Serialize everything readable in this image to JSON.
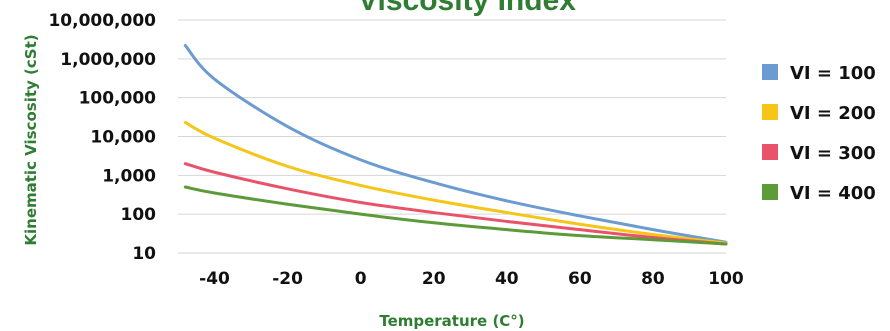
{
  "chart_data": {
    "type": "line",
    "title": "Viscosity Index",
    "xlabel": "Temperature (C°)",
    "ylabel": "Kinematic Viscosity (cSt)",
    "yscale": "log",
    "xlim": [
      -50,
      100
    ],
    "ylim": [
      10,
      10000000
    ],
    "xticks": [
      -40,
      -20,
      0,
      20,
      40,
      60,
      80,
      100
    ],
    "xtick_labels": [
      "-40",
      "-20",
      "0",
      "20",
      "40",
      "60",
      "80",
      "100"
    ],
    "yticks": [
      10,
      100,
      1000,
      10000,
      100000,
      1000000,
      10000000
    ],
    "ytick_labels": [
      "10",
      "100",
      "1,000",
      "10,000",
      "100,000",
      "1,000,000",
      "10,000,000"
    ],
    "grid": "horizontal",
    "legend": "right",
    "x": [
      -48,
      -40,
      -20,
      0,
      20,
      40,
      60,
      80,
      100
    ],
    "series": [
      {
        "name": "VI = 100",
        "color": "#6b9bd1",
        "values": [
          2200000,
          300000,
          18000,
          2500,
          650,
          220,
          90,
          40,
          19
        ]
      },
      {
        "name": "VI = 200",
        "color": "#f5c518",
        "values": [
          23000,
          9000,
          1700,
          550,
          230,
          110,
          55,
          30,
          18
        ]
      },
      {
        "name": "VI = 300",
        "color": "#e8536b",
        "values": [
          2000,
          1200,
          450,
          200,
          110,
          65,
          40,
          25,
          17
        ]
      },
      {
        "name": "VI = 400",
        "color": "#5c9a3a",
        "values": [
          500,
          350,
          180,
          100,
          60,
          40,
          28,
          22,
          17
        ]
      }
    ]
  }
}
